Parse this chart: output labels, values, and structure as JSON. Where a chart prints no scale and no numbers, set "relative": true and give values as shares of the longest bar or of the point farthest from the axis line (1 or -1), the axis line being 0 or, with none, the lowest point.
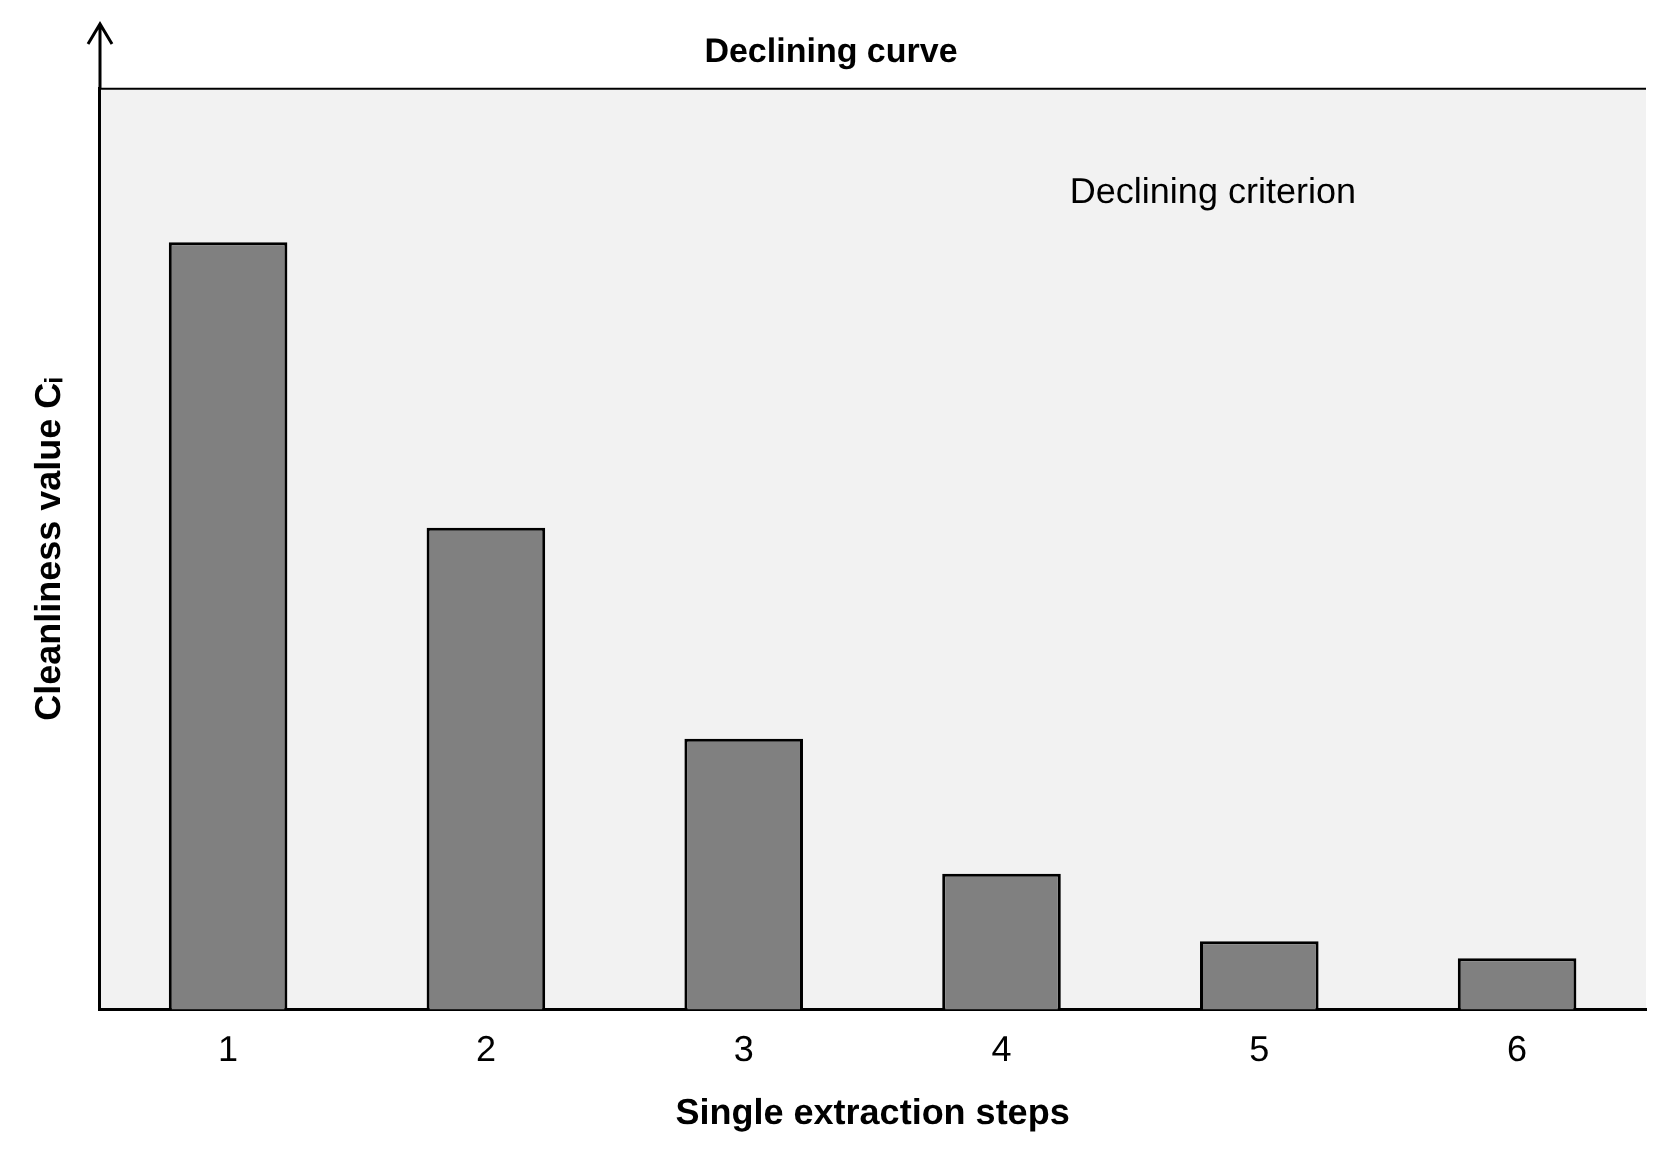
{
  "chart_data": {
    "type": "bar",
    "title": "Declining curve",
    "xlabel": "Single extraction steps",
    "ylabel": "Cleanliness value Cᵢ",
    "categories": [
      "1",
      "2",
      "3",
      "4",
      "5",
      "6"
    ],
    "values": [
      1,
      0.628,
      0.353,
      0.177,
      0.089,
      0.067
    ],
    "color": "#808080",
    "relative": true,
    "grid": false,
    "annotations": [
      "Declining criterion"
    ]
  }
}
